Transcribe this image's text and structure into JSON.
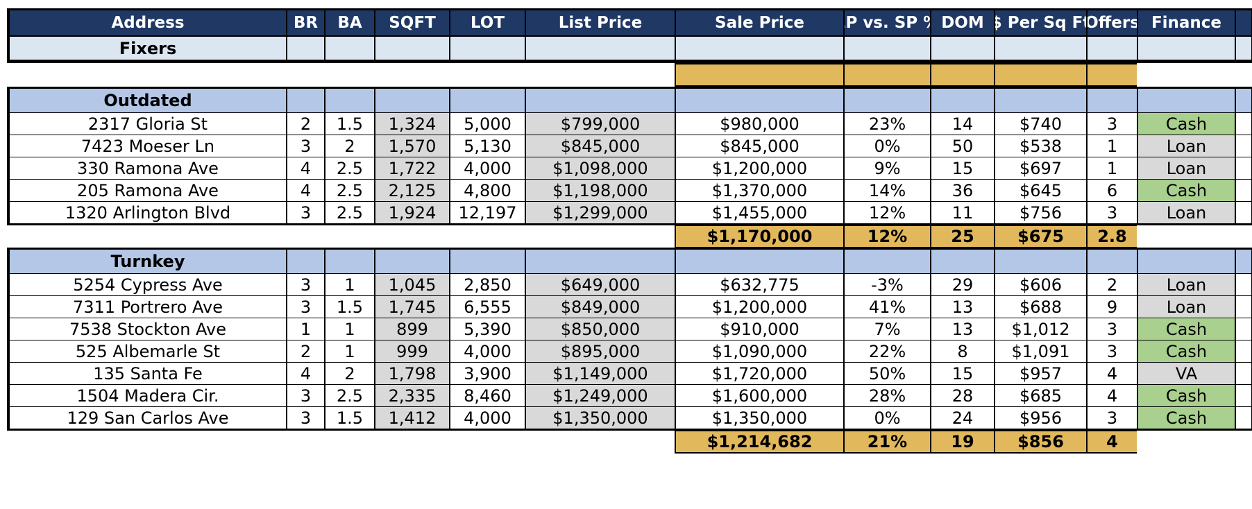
{
  "headers": [
    "Address",
    "BR",
    "BA",
    "SQFT",
    "LOT",
    "List Price",
    "Sale Price",
    "LP vs. SP %",
    "DOM",
    "$ Per Sq Ft",
    "Offers",
    "Finance"
  ],
  "fixers_label": "Fixers",
  "sections": [
    {
      "title": "Outdated",
      "rows": [
        {
          "address": "2317 Gloria St",
          "br": "2",
          "ba": "1.5",
          "sqft": "1,324",
          "lot": "5,000",
          "list": "$799,000",
          "sale": "$980,000",
          "pct": "23%",
          "dom": "14",
          "ppsf": "$740",
          "offers": "3",
          "finance": "Cash"
        },
        {
          "address": "7423 Moeser Ln",
          "br": "3",
          "ba": "2",
          "sqft": "1,570",
          "lot": "5,130",
          "list": "$845,000",
          "sale": "$845,000",
          "pct": "0%",
          "dom": "50",
          "ppsf": "$538",
          "offers": "1",
          "finance": "Loan"
        },
        {
          "address": "330 Ramona Ave",
          "br": "4",
          "ba": "2.5",
          "sqft": "1,722",
          "lot": "4,000",
          "list": "$1,098,000",
          "sale": "$1,200,000",
          "pct": "9%",
          "dom": "15",
          "ppsf": "$697",
          "offers": "1",
          "finance": "Loan"
        },
        {
          "address": "205 Ramona Ave",
          "br": "4",
          "ba": "2.5",
          "sqft": "2,125",
          "lot": "4,800",
          "list": "$1,198,000",
          "sale": "$1,370,000",
          "pct": "14%",
          "dom": "36",
          "ppsf": "$645",
          "offers": "6",
          "finance": "Cash"
        },
        {
          "address": "1320 Arlington Blvd",
          "br": "3",
          "ba": "2.5",
          "sqft": "1,924",
          "lot": "12,197",
          "list": "$1,299,000",
          "sale": "$1,455,000",
          "pct": "12%",
          "dom": "11",
          "ppsf": "$756",
          "offers": "3",
          "finance": "Loan"
        }
      ],
      "summary": {
        "sale": "$1,170,000",
        "pct": "12%",
        "dom": "25",
        "ppsf": "$675",
        "offers": "2.8"
      }
    },
    {
      "title": "Turnkey",
      "rows": [
        {
          "address": "5254 Cypress Ave",
          "br": "3",
          "ba": "1",
          "sqft": "1,045",
          "lot": "2,850",
          "list": "$649,000",
          "sale": "$632,775",
          "pct": "-3%",
          "dom": "29",
          "ppsf": "$606",
          "offers": "2",
          "finance": "Loan"
        },
        {
          "address": "7311 Portrero Ave",
          "br": "3",
          "ba": "1.5",
          "sqft": "1,745",
          "lot": "6,555",
          "list": "$849,000",
          "sale": "$1,200,000",
          "pct": "41%",
          "dom": "13",
          "ppsf": "$688",
          "offers": "9",
          "finance": "Loan"
        },
        {
          "address": "7538 Stockton Ave",
          "br": "1",
          "ba": "1",
          "sqft": "899",
          "lot": "5,390",
          "list": "$850,000",
          "sale": "$910,000",
          "pct": "7%",
          "dom": "13",
          "ppsf": "$1,012",
          "offers": "3",
          "finance": "Cash"
        },
        {
          "address": "525 Albemarle St",
          "br": "2",
          "ba": "1",
          "sqft": "999",
          "lot": "4,000",
          "list": "$895,000",
          "sale": "$1,090,000",
          "pct": "22%",
          "dom": "8",
          "ppsf": "$1,091",
          "offers": "3",
          "finance": "Cash"
        },
        {
          "address": "135 Santa Fe",
          "br": "4",
          "ba": "2",
          "sqft": "1,798",
          "lot": "3,900",
          "list": "$1,149,000",
          "sale": "$1,720,000",
          "pct": "50%",
          "dom": "15",
          "ppsf": "$957",
          "offers": "4",
          "finance": "VA"
        },
        {
          "address": "1504 Madera Cir.",
          "br": "3",
          "ba": "2.5",
          "sqft": "2,335",
          "lot": "8,460",
          "list": "$1,249,000",
          "sale": "$1,600,000",
          "pct": "28%",
          "dom": "28",
          "ppsf": "$685",
          "offers": "4",
          "finance": "Cash"
        },
        {
          "address": "129 San Carlos Ave",
          "br": "3",
          "ba": "1.5",
          "sqft": "1,412",
          "lot": "4,000",
          "list": "$1,350,000",
          "sale": "$1,350,000",
          "pct": "0%",
          "dom": "24",
          "ppsf": "$956",
          "offers": "3",
          "finance": "Cash"
        }
      ],
      "summary": {
        "sale": "$1,214,682",
        "pct": "21%",
        "dom": "19",
        "ppsf": "$856",
        "offers": "4"
      }
    }
  ],
  "colors": {
    "header_bg": "#1f3864",
    "header_text": "#ffffff",
    "fixers_bg": "#dce6f1",
    "section_bg": "#b4c7e7",
    "summary_bg": "#e2b85c",
    "list_price_bg": "#d9d9d9",
    "cash_bg": "#a9d08e",
    "loan_bg": "#d9d9d9"
  }
}
